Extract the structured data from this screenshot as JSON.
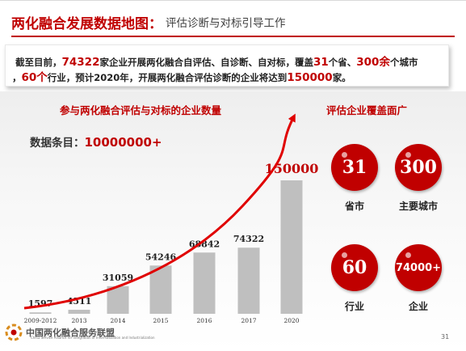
{
  "header": {
    "title_main": "两化融合发展数据地图",
    "title_colon": "：",
    "title_sub": "评估诊断与对标引导工作"
  },
  "intro": {
    "line1_a": "截至目前，",
    "line1_b": "74322",
    "line1_c": "家企业开展两化融合自评估、自诊断、自对标，覆盖",
    "line1_d": "31",
    "line1_e": "个省、",
    "line1_f": "300余",
    "line1_g": "个城市",
    "line2_a": "，",
    "line2_b": "60个",
    "line2_c": "行业，预计2020年，开展两化融合评估诊断的企业将达到",
    "line2_d": "150000",
    "line2_e": "家。"
  },
  "data_count": {
    "label": "数据条目：",
    "value": "10000000+"
  },
  "chart_data": {
    "type": "bar",
    "title": "参与两化融合评估与对标的企业数量",
    "categories": [
      "2009-2012",
      "2013",
      "2014",
      "2015",
      "2016",
      "2017",
      "2020"
    ],
    "values": [
      1597,
      4511,
      31059,
      54246,
      68842,
      74322,
      150000
    ],
    "data_labels": [
      "1597",
      "4511",
      "31059",
      "54246",
      "68842",
      "74322",
      "150000"
    ],
    "ylim": [
      0,
      150000
    ],
    "grid": false,
    "legend": "none",
    "colors": {
      "bar": "#bfbfbf",
      "label": "#222222",
      "highlight_label": "#c00000",
      "trend_arrow": "#e00000"
    }
  },
  "coverage": {
    "title": "评估企业覆盖面广",
    "items": [
      {
        "value": "31",
        "label": "省市"
      },
      {
        "value": "300",
        "label": "主要城市"
      },
      {
        "value": "60",
        "label": "行业"
      },
      {
        "value": "74000+",
        "label": "企业"
      }
    ]
  },
  "footer": {
    "logo_name": "中国两化融合服务联盟",
    "logo_sub": "China Service Alliance for Integration of Informatization and Industrialization",
    "page_number": "31"
  },
  "colors": {
    "accent": "#c00000",
    "text": "#222222"
  }
}
